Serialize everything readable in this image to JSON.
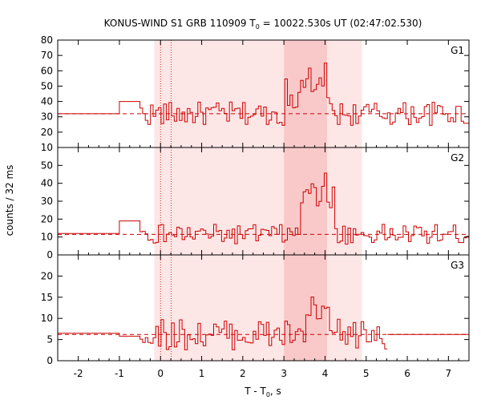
{
  "chart_data": {
    "type": "line",
    "title_main": "KONUS-WIND S1 GRB 110909 T",
    "title_sub": "0",
    "title_rest": " = 10022.530s UT (02:47:02.530)",
    "xlabel_main": "T - T",
    "xlabel_sub": "0",
    "xlabel_rest": ", s",
    "ylabel": "counts / 32 ms",
    "xlim": [
      -2.5,
      7.5
    ],
    "xticks": [
      -2,
      -1,
      0,
      1,
      2,
      3,
      4,
      5,
      6,
      7
    ],
    "shaded_regions": [
      {
        "x0": -0.15,
        "x1": 4.9,
        "color": "#fde6e6"
      },
      {
        "x0": 3.0,
        "x1": 4.05,
        "color": "#f9c9c9"
      }
    ],
    "vlines": [
      0.0,
      0.26
    ],
    "colors": {
      "series": "#cc0000",
      "shade_light": "#fde6e6",
      "shade_dark": "#f9c9c9"
    },
    "panels": [
      {
        "name": "G1",
        "ylim": [
          10,
          80
        ],
        "yticks": [
          10,
          20,
          30,
          40,
          50,
          60,
          70,
          80
        ],
        "background": 32.0,
        "pre_steps": [
          [
            -2.5,
            32
          ],
          [
            -1.0,
            40
          ],
          [
            -0.5,
            40
          ]
        ],
        "bursts": [
          [
            3.0,
            4.1,
            14
          ],
          [
            3.5,
            4.0,
            8
          ]
        ],
        "noise": 5.5,
        "gap_start": 7.6
      },
      {
        "name": "G2",
        "ylim": [
          0,
          60
        ],
        "yticks": [
          0,
          10,
          20,
          30,
          40,
          50
        ],
        "background": 11.5,
        "pre_steps": [
          [
            -2.5,
            12
          ],
          [
            -1.0,
            19
          ],
          [
            -0.5,
            19
          ]
        ],
        "bursts": [
          [
            3.4,
            4.2,
            22
          ],
          [
            3.55,
            4.1,
            8
          ]
        ],
        "noise": 4.0,
        "gap_start": 7.6
      },
      {
        "name": "G3",
        "ylim": [
          0,
          25
        ],
        "yticks": [
          0,
          5,
          10,
          15,
          20
        ],
        "background": 6.2,
        "pre_steps": [
          [
            -2.5,
            6.5
          ],
          [
            -1.0,
            5.8
          ],
          [
            -0.5,
            5.8
          ]
        ],
        "bursts": [
          [
            3.5,
            4.1,
            5
          ]
        ],
        "noise": 2.6,
        "gap_start": 5.5
      }
    ]
  }
}
